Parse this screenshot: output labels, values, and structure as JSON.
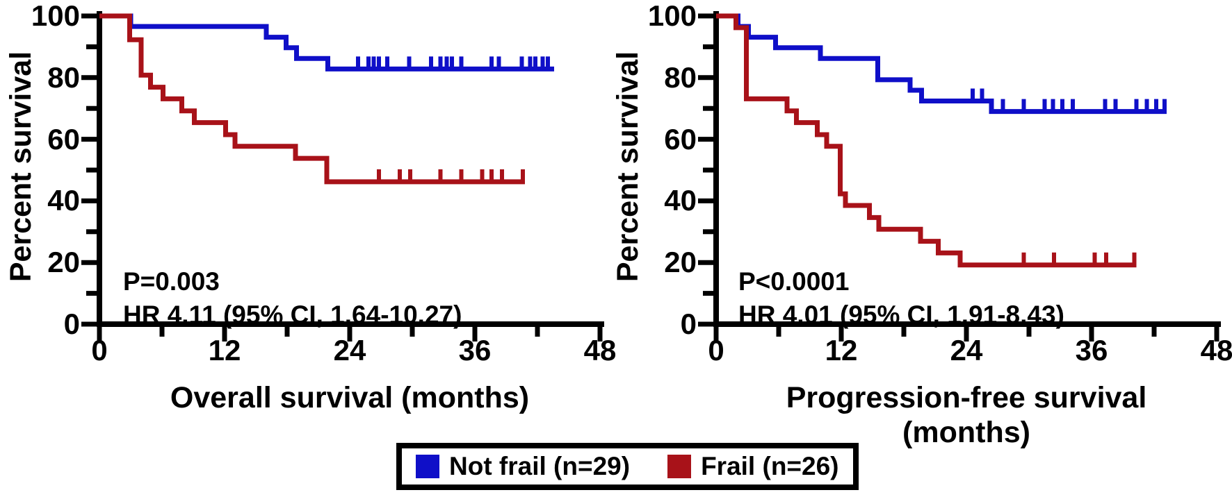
{
  "figure": {
    "colors": {
      "not_frail": "#0f0fc8",
      "frail": "#a81219",
      "axis": "#000000",
      "background": "#ffffff"
    },
    "legend": {
      "items": [
        {
          "label": "Not frail (n=29)",
          "series": "not_frail"
        },
        {
          "label": "Frail (n=26)",
          "series": "frail"
        }
      ]
    }
  },
  "chart_data": [
    {
      "type": "line",
      "subtype": "kaplan_meier_step",
      "title": "",
      "xlabel": "Overall survival (months)",
      "ylabel": "Percent survival",
      "xlim": [
        0,
        48
      ],
      "ylim": [
        0,
        100
      ],
      "x_ticks": [
        0,
        12,
        24,
        36,
        48
      ],
      "x_minor_ticks": [
        6,
        18,
        30,
        42
      ],
      "y_ticks": [
        0,
        20,
        40,
        60,
        80,
        100
      ],
      "y_minor_ticks": [
        10,
        30,
        50,
        70,
        90
      ],
      "grid": false,
      "annotations": [
        "P=0.003",
        "HR 4.11 (95% CI, 1.64-10.27)"
      ],
      "series": [
        {
          "name": "Not frail (n=29)",
          "color_key": "not_frail",
          "steps": [
            [
              0,
              100
            ],
            [
              3,
              100
            ],
            [
              3,
              96.6
            ],
            [
              16,
              96.6
            ],
            [
              16,
              93.1
            ],
            [
              17.9,
              93.1
            ],
            [
              17.9,
              89.7
            ],
            [
              18.9,
              89.7
            ],
            [
              18.9,
              86.2
            ],
            [
              21.9,
              86.2
            ],
            [
              21.9,
              82.8
            ],
            [
              43.6,
              82.8
            ]
          ],
          "censor_marks": [
            [
              24.8,
              82.8
            ],
            [
              25.8,
              82.8
            ],
            [
              26.3,
              82.8
            ],
            [
              26.8,
              82.8
            ],
            [
              27.6,
              82.8
            ],
            [
              29.7,
              82.8
            ],
            [
              31.8,
              82.8
            ],
            [
              32.7,
              82.8
            ],
            [
              33.3,
              82.8
            ],
            [
              33.8,
              82.8
            ],
            [
              34.7,
              82.8
            ],
            [
              37.6,
              82.8
            ],
            [
              38.3,
              82.8
            ],
            [
              40.5,
              82.8
            ],
            [
              41.3,
              82.8
            ],
            [
              41.8,
              82.8
            ],
            [
              42.5,
              82.8
            ],
            [
              43.0,
              82.8
            ]
          ]
        },
        {
          "name": "Frail (n=26)",
          "color_key": "frail",
          "steps": [
            [
              0,
              100
            ],
            [
              2.9,
              100
            ],
            [
              2.9,
              92.3
            ],
            [
              4,
              92.3
            ],
            [
              4,
              80.8
            ],
            [
              4.9,
              80.8
            ],
            [
              4.9,
              76.9
            ],
            [
              6.1,
              76.9
            ],
            [
              6.1,
              73.1
            ],
            [
              7.9,
              73.1
            ],
            [
              7.9,
              69.2
            ],
            [
              9.1,
              69.2
            ],
            [
              9.1,
              65.4
            ],
            [
              12.1,
              65.4
            ],
            [
              12.1,
              61.5
            ],
            [
              13,
              61.5
            ],
            [
              13,
              57.7
            ],
            [
              18.8,
              57.7
            ],
            [
              18.8,
              53.8
            ],
            [
              21.8,
              53.8
            ],
            [
              21.8,
              46.2
            ],
            [
              40.8,
              46.2
            ]
          ],
          "censor_marks": [
            [
              26.8,
              46.2
            ],
            [
              28.8,
              46.2
            ],
            [
              29.8,
              46.2
            ],
            [
              32.7,
              46.2
            ],
            [
              34.7,
              46.2
            ],
            [
              36.7,
              46.2
            ],
            [
              37.6,
              46.2
            ],
            [
              38.6,
              46.2
            ],
            [
              40.6,
              46.2
            ]
          ]
        }
      ]
    },
    {
      "type": "line",
      "subtype": "kaplan_meier_step",
      "title": "",
      "xlabel": "Progression-free survival (months)",
      "ylabel": "Percent survival",
      "xlim": [
        0,
        48
      ],
      "ylim": [
        0,
        100
      ],
      "x_ticks": [
        0,
        12,
        24,
        36,
        48
      ],
      "x_minor_ticks": [
        6,
        18,
        30,
        42
      ],
      "y_ticks": [
        0,
        20,
        40,
        60,
        80,
        100
      ],
      "y_minor_ticks": [
        10,
        30,
        50,
        70,
        90
      ],
      "grid": false,
      "annotations": [
        "P<0.0001",
        "HR 4.01 (95% CI, 1.91-8.43)"
      ],
      "series": [
        {
          "name": "Not frail (n=29)",
          "color_key": "not_frail",
          "steps": [
            [
              0,
              100
            ],
            [
              2.1,
              100
            ],
            [
              2.1,
              96.6
            ],
            [
              3.1,
              96.6
            ],
            [
              3.1,
              93.1
            ],
            [
              5.7,
              93.1
            ],
            [
              5.7,
              89.7
            ],
            [
              10,
              89.7
            ],
            [
              10,
              86.2
            ],
            [
              15.5,
              86.2
            ],
            [
              15.5,
              79.3
            ],
            [
              18.6,
              79.3
            ],
            [
              18.6,
              75.9
            ],
            [
              19.7,
              75.9
            ],
            [
              19.7,
              72.4
            ],
            [
              26.4,
              72.4
            ],
            [
              26.4,
              69
            ],
            [
              43.2,
              69
            ]
          ],
          "censor_marks": [
            [
              24.6,
              72.4
            ],
            [
              25.5,
              72.4
            ],
            [
              27.5,
              69
            ],
            [
              29.5,
              69
            ],
            [
              31.5,
              69
            ],
            [
              32.3,
              69
            ],
            [
              33.2,
              69
            ],
            [
              34.2,
              69
            ],
            [
              37.3,
              69
            ],
            [
              38.3,
              69
            ],
            [
              40.3,
              69
            ],
            [
              41.3,
              69
            ],
            [
              42.2,
              69
            ],
            [
              43.0,
              69
            ]
          ]
        },
        {
          "name": "Frail (n=26)",
          "color_key": "frail",
          "steps": [
            [
              0,
              100
            ],
            [
              1.9,
              100
            ],
            [
              1.9,
              96.2
            ],
            [
              2.9,
              96.2
            ],
            [
              2.9,
              73.1
            ],
            [
              6.8,
              73.1
            ],
            [
              6.8,
              69.2
            ],
            [
              7.7,
              69.2
            ],
            [
              7.7,
              65.4
            ],
            [
              9.7,
              65.4
            ],
            [
              9.7,
              61.5
            ],
            [
              10.6,
              61.5
            ],
            [
              10.6,
              57.7
            ],
            [
              11.9,
              57.7
            ],
            [
              11.9,
              42.3
            ],
            [
              12.4,
              42.3
            ],
            [
              12.4,
              38.5
            ],
            [
              14.7,
              38.5
            ],
            [
              14.7,
              34.6
            ],
            [
              15.6,
              34.6
            ],
            [
              15.6,
              30.8
            ],
            [
              19.6,
              30.8
            ],
            [
              19.6,
              26.9
            ],
            [
              21.3,
              26.9
            ],
            [
              21.3,
              23.1
            ],
            [
              23.4,
              23.1
            ],
            [
              23.4,
              19.2
            ],
            [
              40.3,
              19.2
            ]
          ],
          "censor_marks": [
            [
              29.5,
              19.2
            ],
            [
              32.4,
              19.2
            ],
            [
              36.3,
              19.2
            ],
            [
              37.4,
              19.2
            ],
            [
              40.1,
              19.2
            ]
          ]
        }
      ]
    }
  ]
}
